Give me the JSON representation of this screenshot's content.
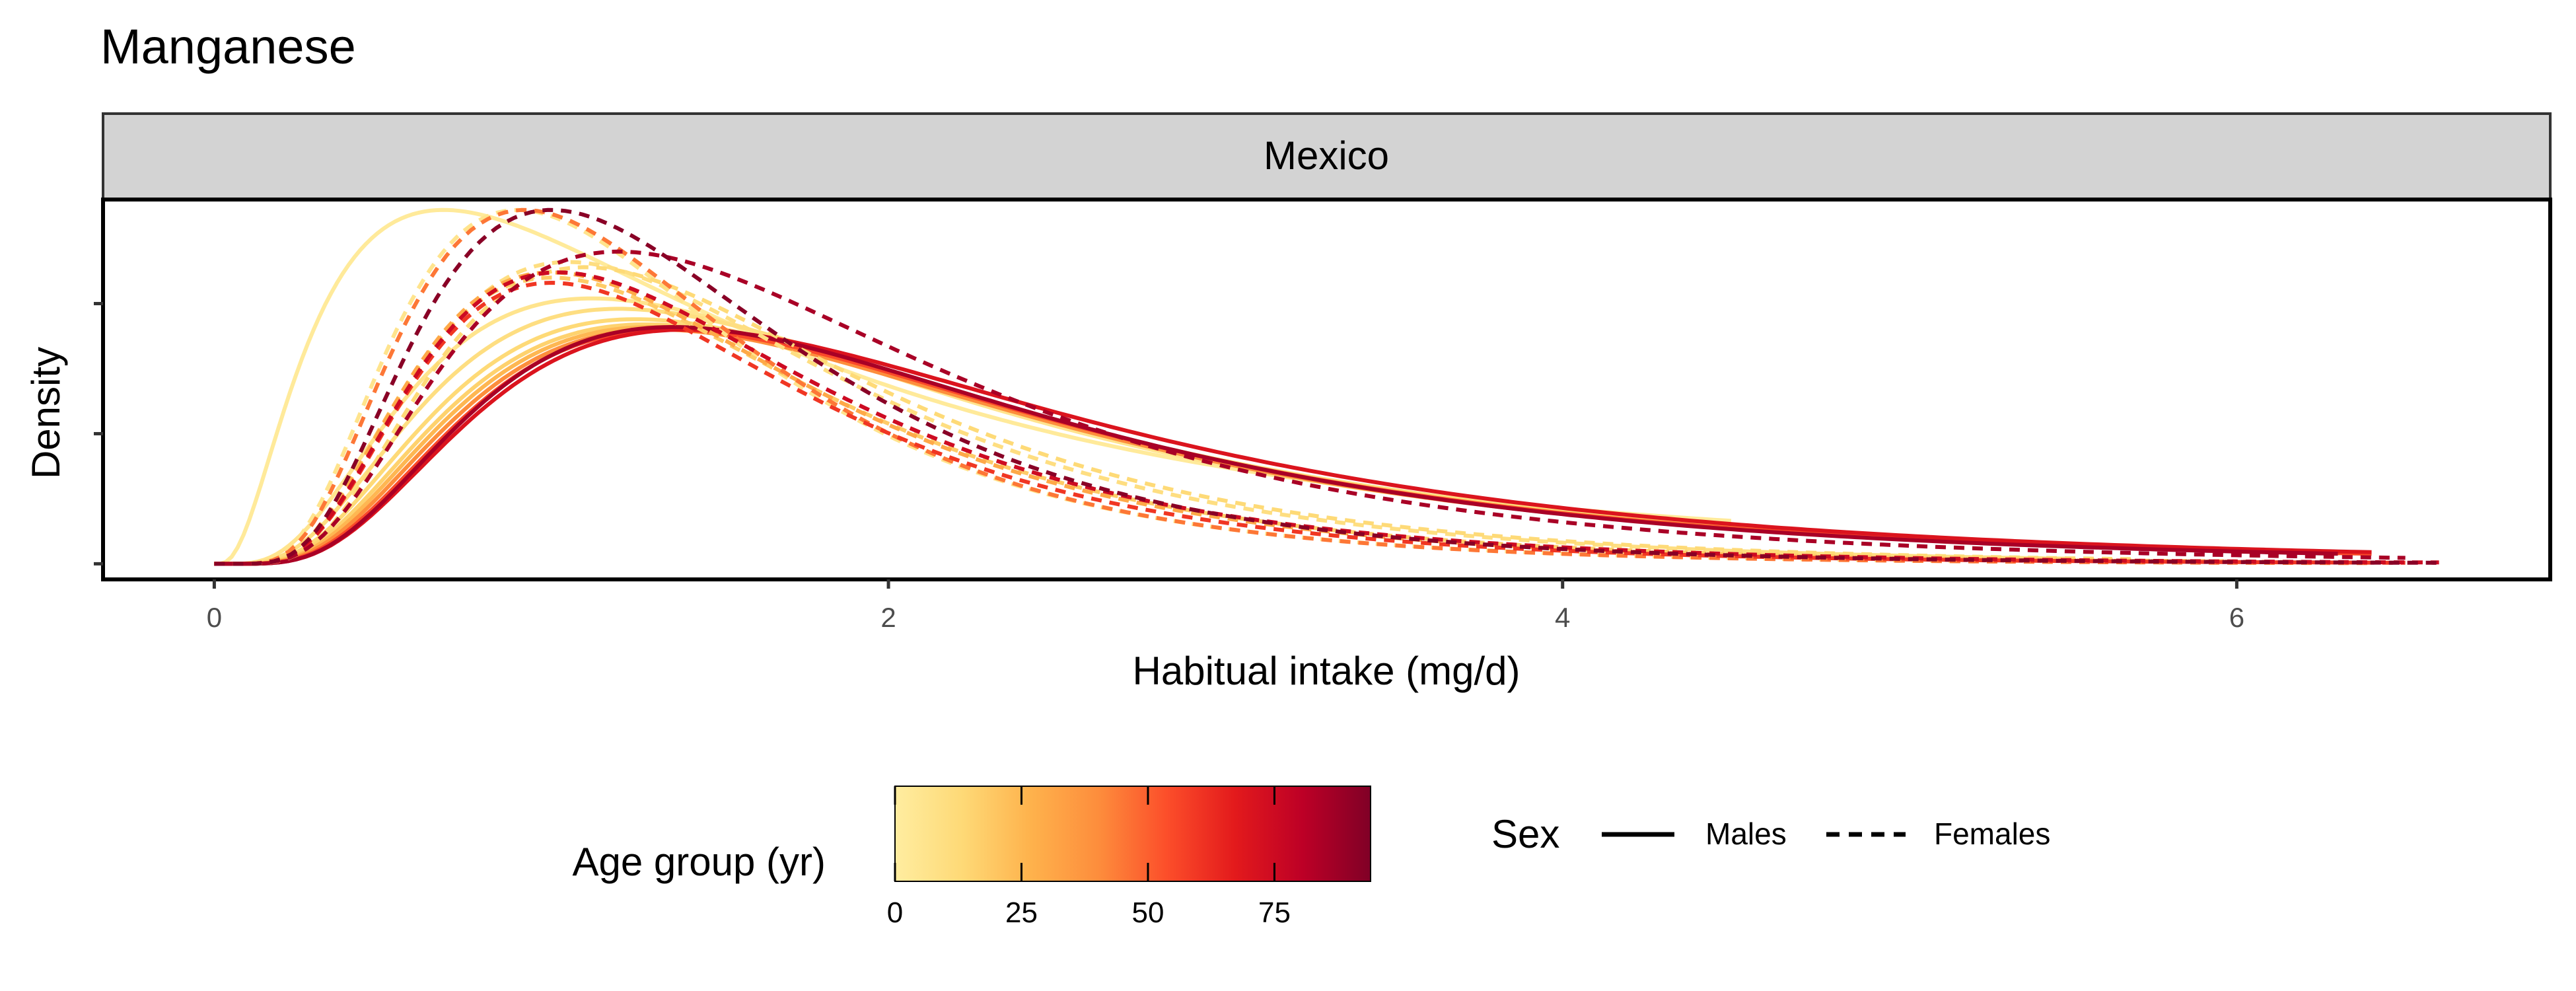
{
  "chart_data": {
    "type": "line",
    "title": "Manganese",
    "facet": "Mexico",
    "xlabel": "Habitual intake (mg/d)",
    "ylabel": "Density",
    "xlim": [
      -0.33,
      6.93
    ],
    "ylim": [
      -0.03,
      0.7
    ],
    "x_ticks": [
      0,
      2,
      4,
      6
    ],
    "y_ticks": [
      0,
      0.25,
      0.5
    ],
    "grid": false,
    "legend": {
      "color_title": "Age group (yr)",
      "color_ticks": [
        0,
        25,
        50,
        75
      ],
      "color_range": [
        0,
        94
      ],
      "color_stops": [
        "#ffeda0",
        "#fed976",
        "#feb24c",
        "#fd8d3c",
        "#fc4e2a",
        "#e31a1c",
        "#bd0026",
        "#800026"
      ],
      "linetype_title": "Sex",
      "linetype_entries": [
        "Males",
        "Females"
      ],
      "placement": "bottom"
    },
    "series": [
      {
        "sex": "Males",
        "age": 2,
        "mode": 0.68,
        "peak": 0.68,
        "sd": 0.92,
        "xmax": 4.5
      },
      {
        "sex": "Males",
        "age": 6,
        "mode": 1.12,
        "peak": 0.51,
        "sd": 0.7,
        "xmax": 4.8
      },
      {
        "sex": "Males",
        "age": 10,
        "mode": 1.2,
        "peak": 0.49,
        "sd": 0.68,
        "xmax": 5.0
      },
      {
        "sex": "Males",
        "age": 13,
        "mode": 1.25,
        "peak": 0.47,
        "sd": 0.66,
        "xmax": 5.3
      },
      {
        "sex": "Males",
        "age": 16,
        "mode": 1.28,
        "peak": 0.46,
        "sd": 0.65,
        "xmax": 5.6
      },
      {
        "sex": "Males",
        "age": 25,
        "mode": 1.3,
        "peak": 0.455,
        "sd": 0.64,
        "xmax": 5.9
      },
      {
        "sex": "Males",
        "age": 40,
        "mode": 1.32,
        "peak": 0.45,
        "sd": 0.63,
        "xmax": 6.2
      },
      {
        "sex": "Males",
        "age": 55,
        "mode": 1.35,
        "peak": 0.45,
        "sd": 0.62,
        "xmax": 6.4
      },
      {
        "sex": "Males",
        "age": 70,
        "mode": 1.4,
        "peak": 0.45,
        "sd": 0.62,
        "xmax": 6.4
      },
      {
        "sex": "Males",
        "age": 85,
        "mode": 1.36,
        "peak": 0.455,
        "sd": 0.61,
        "xmax": 6.3
      },
      {
        "sex": "Females",
        "age": 6,
        "mode": 0.9,
        "peak": 0.68,
        "sd": 0.56,
        "xmax": 5.2
      },
      {
        "sex": "Females",
        "age": 10,
        "mode": 1.05,
        "peak": 0.58,
        "sd": 0.58,
        "xmax": 5.5
      },
      {
        "sex": "Females",
        "age": 13,
        "mode": 1.1,
        "peak": 0.57,
        "sd": 0.57,
        "xmax": 5.7
      },
      {
        "sex": "Females",
        "age": 18,
        "mode": 1.0,
        "peak": 0.55,
        "sd": 0.58,
        "xmax": 6.0
      },
      {
        "sex": "Females",
        "age": 30,
        "mode": 1.0,
        "peak": 0.56,
        "sd": 0.57,
        "xmax": 6.2
      },
      {
        "sex": "Females",
        "age": 45,
        "mode": 0.92,
        "peak": 0.68,
        "sd": 0.55,
        "xmax": 6.4
      },
      {
        "sex": "Females",
        "age": 60,
        "mode": 1.0,
        "peak": 0.54,
        "sd": 0.56,
        "xmax": 6.5
      },
      {
        "sex": "Females",
        "age": 75,
        "mode": 1.02,
        "peak": 0.56,
        "sd": 0.57,
        "xmax": 6.6
      },
      {
        "sex": "Females",
        "age": 85,
        "mode": 1.2,
        "peak": 0.6,
        "sd": 0.6,
        "xmax": 6.5
      },
      {
        "sex": "Females",
        "age": 92,
        "mode": 1.0,
        "peak": 0.68,
        "sd": 0.55,
        "xmax": 6.6
      }
    ]
  }
}
